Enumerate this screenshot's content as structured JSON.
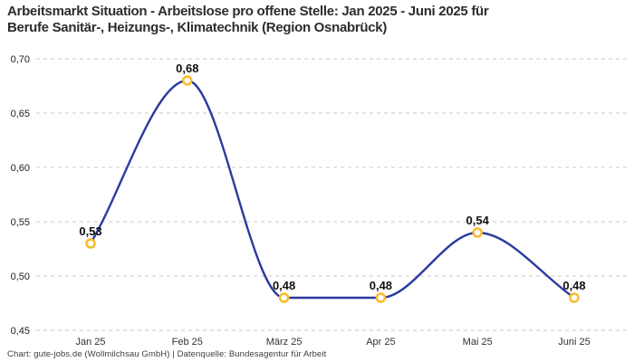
{
  "header": {
    "title_lines": [
      "Arbeitsmarkt Situation - Arbeitslose pro offene Stelle: Jan 2025 - Juni 2025 für",
      "Berufe Sanitär-, Heizungs-, Klimatechnik (Region Osnabrück)"
    ]
  },
  "footer": {
    "credit": "Chart: gute-jobs.de (Wollmilchsau GmbH) | Datenquelle: Bundesagentur für Arbeit"
  },
  "chart_data": {
    "type": "line",
    "title": "Arbeitsmarkt Situation - Arbeitslose pro offene Stelle: Jan 2025 - Juni 2025 für Berufe Sanitär-, Heizungs-, Klimatechnik (Region Osnabrück)",
    "categories": [
      "Jan 25",
      "Feb 25",
      "März 25",
      "Apr 25",
      "Mai 25",
      "Juni 25"
    ],
    "values": [
      0.53,
      0.68,
      0.48,
      0.48,
      0.54,
      0.48
    ],
    "value_labels": [
      "0,53",
      "0,68",
      "0,48",
      "0,48",
      "0,54",
      "0,48"
    ],
    "y_tick_labels": [
      "0,70",
      "0,65",
      "0,60",
      "0,55",
      "0,50",
      "0,45"
    ],
    "y_tick_values": [
      0.7,
      0.65,
      0.6,
      0.55,
      0.5,
      0.45
    ],
    "ylim": [
      0.45,
      0.7
    ],
    "xlabel": "",
    "ylabel": "",
    "grid": "horizontal-dashed",
    "legend": "none",
    "interpolation": "monotone-cubic",
    "marker_shape": "open-circle",
    "colors": {
      "line": "#2b3a9e",
      "marker_ring": "#f9bc2a",
      "marker_fill": "#ffffff",
      "grid": "#c9c9c9",
      "value_label": "#111111",
      "tick_label": "#222222",
      "x_label": "#333333"
    }
  }
}
